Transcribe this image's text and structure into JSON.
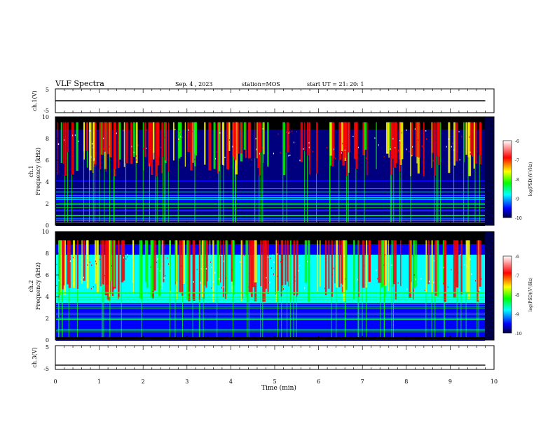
{
  "header": {
    "title": "VLF Spectra",
    "date": "Sep. 4 , 2023",
    "station": "station=MOS",
    "start": "start UT =  21: 20: 1"
  },
  "chart_data": [
    {
      "type": "line",
      "panel": "ch.1 voltage",
      "ylabel": "ch.1(V)",
      "ylim": [
        -5,
        5
      ],
      "yticks": [
        "5",
        "-5"
      ],
      "x": [
        0,
        9.8
      ],
      "values": [
        0,
        0
      ]
    },
    {
      "type": "heatmap",
      "panel": "ch.1 spectrogram",
      "ylabel": "ch.1\nFrequency (kHz)",
      "ylim": [
        0,
        10
      ],
      "yticks": [
        "0",
        "2",
        "4",
        "6",
        "8",
        "10"
      ],
      "xlim": [
        0,
        10
      ],
      "colorbar": {
        "label": "log(PSD)(V²/Hz)",
        "range": [
          -10,
          -6
        ],
        "ticks": [
          "-6",
          "-7",
          "-8",
          "-9",
          "-10"
        ]
      }
    },
    {
      "type": "heatmap",
      "panel": "ch.2 spectrogram",
      "ylabel": "ch.2\nFrequency (kHz)",
      "ylim": [
        0,
        10
      ],
      "yticks": [
        "0",
        "2",
        "4",
        "6",
        "8",
        "10"
      ],
      "xlim": [
        0,
        10
      ],
      "colorbar": {
        "label": "log(PSD)(V²/Hz)",
        "range": [
          -10,
          -6
        ],
        "ticks": [
          "-6",
          "-7",
          "-8",
          "-9",
          "-10"
        ]
      }
    },
    {
      "type": "line",
      "panel": "ch.3 voltage",
      "ylabel": "ch.3(V)",
      "ylim": [
        -5,
        5
      ],
      "yticks": [
        "5",
        "-5"
      ],
      "x": [
        0,
        9.8
      ],
      "values": [
        -3.2,
        -3.2
      ]
    }
  ],
  "xaxis": {
    "label": "Time (min)",
    "ticks": [
      "0",
      "1",
      "2",
      "3",
      "4",
      "5",
      "6",
      "7",
      "8",
      "9",
      "10"
    ],
    "range": [
      0,
      10
    ]
  },
  "colors": {
    "cmap": [
      "#000000",
      "#00007f",
      "#0000ff",
      "#00ffff",
      "#00ff00",
      "#ffff00",
      "#ff0000",
      "#ffffff"
    ]
  }
}
